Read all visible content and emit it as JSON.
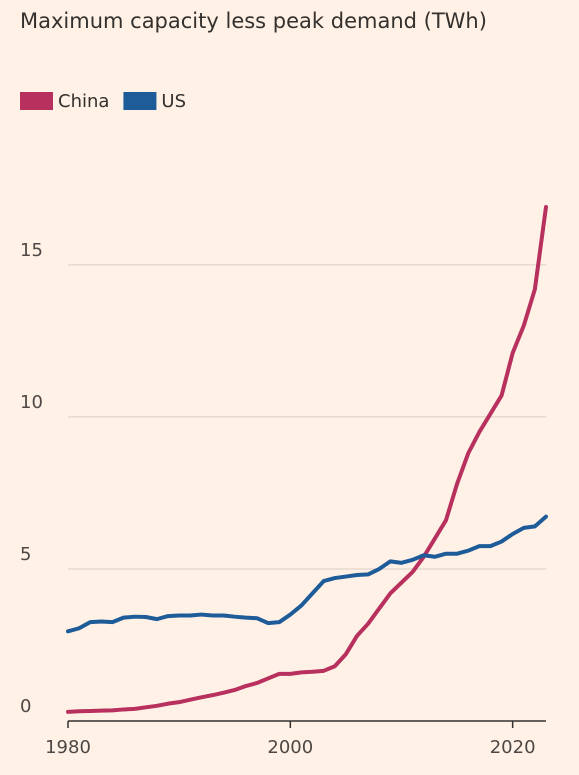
{
  "chart_data": {
    "type": "line",
    "title": "Maximum capacity less peak demand (TWh)",
    "x": [
      1980,
      1981,
      1982,
      1983,
      1984,
      1985,
      1986,
      1987,
      1988,
      1989,
      1990,
      1991,
      1992,
      1993,
      1994,
      1995,
      1996,
      1997,
      1998,
      1999,
      2000,
      2001,
      2002,
      2003,
      2004,
      2005,
      2006,
      2007,
      2008,
      2009,
      2010,
      2011,
      2012,
      2013,
      2014,
      2015,
      2016,
      2017,
      2018,
      2019,
      2020,
      2021,
      2022,
      2023
    ],
    "series": [
      {
        "name": "China",
        "color": "#b8305e",
        "values": [
          0.3,
          0.32,
          0.33,
          0.34,
          0.35,
          0.38,
          0.4,
          0.45,
          0.5,
          0.57,
          0.62,
          0.7,
          0.78,
          0.85,
          0.93,
          1.02,
          1.15,
          1.25,
          1.4,
          1.55,
          1.55,
          1.6,
          1.62,
          1.65,
          1.8,
          2.2,
          2.8,
          3.2,
          3.7,
          4.2,
          4.55,
          4.9,
          5.4,
          6.0,
          6.6,
          7.8,
          8.8,
          9.5,
          10.1,
          10.7,
          12.1,
          13.0,
          14.2,
          16.9
        ]
      },
      {
        "name": "US",
        "color": "#1d5b99",
        "values": [
          2.95,
          3.05,
          3.25,
          3.27,
          3.25,
          3.4,
          3.43,
          3.42,
          3.35,
          3.45,
          3.47,
          3.47,
          3.5,
          3.47,
          3.47,
          3.43,
          3.4,
          3.38,
          3.22,
          3.25,
          3.5,
          3.8,
          4.2,
          4.6,
          4.7,
          4.75,
          4.8,
          4.82,
          5.0,
          5.25,
          5.2,
          5.3,
          5.45,
          5.4,
          5.5,
          5.5,
          5.6,
          5.75,
          5.75,
          5.9,
          6.15,
          6.35,
          6.4,
          6.72
        ]
      }
    ],
    "xlim": [
      1980,
      2023
    ],
    "xticks": [
      1980,
      2000,
      2020
    ],
    "ylim": [
      0,
      17
    ],
    "yticks": [
      0,
      5,
      10,
      15
    ],
    "grid": true
  }
}
